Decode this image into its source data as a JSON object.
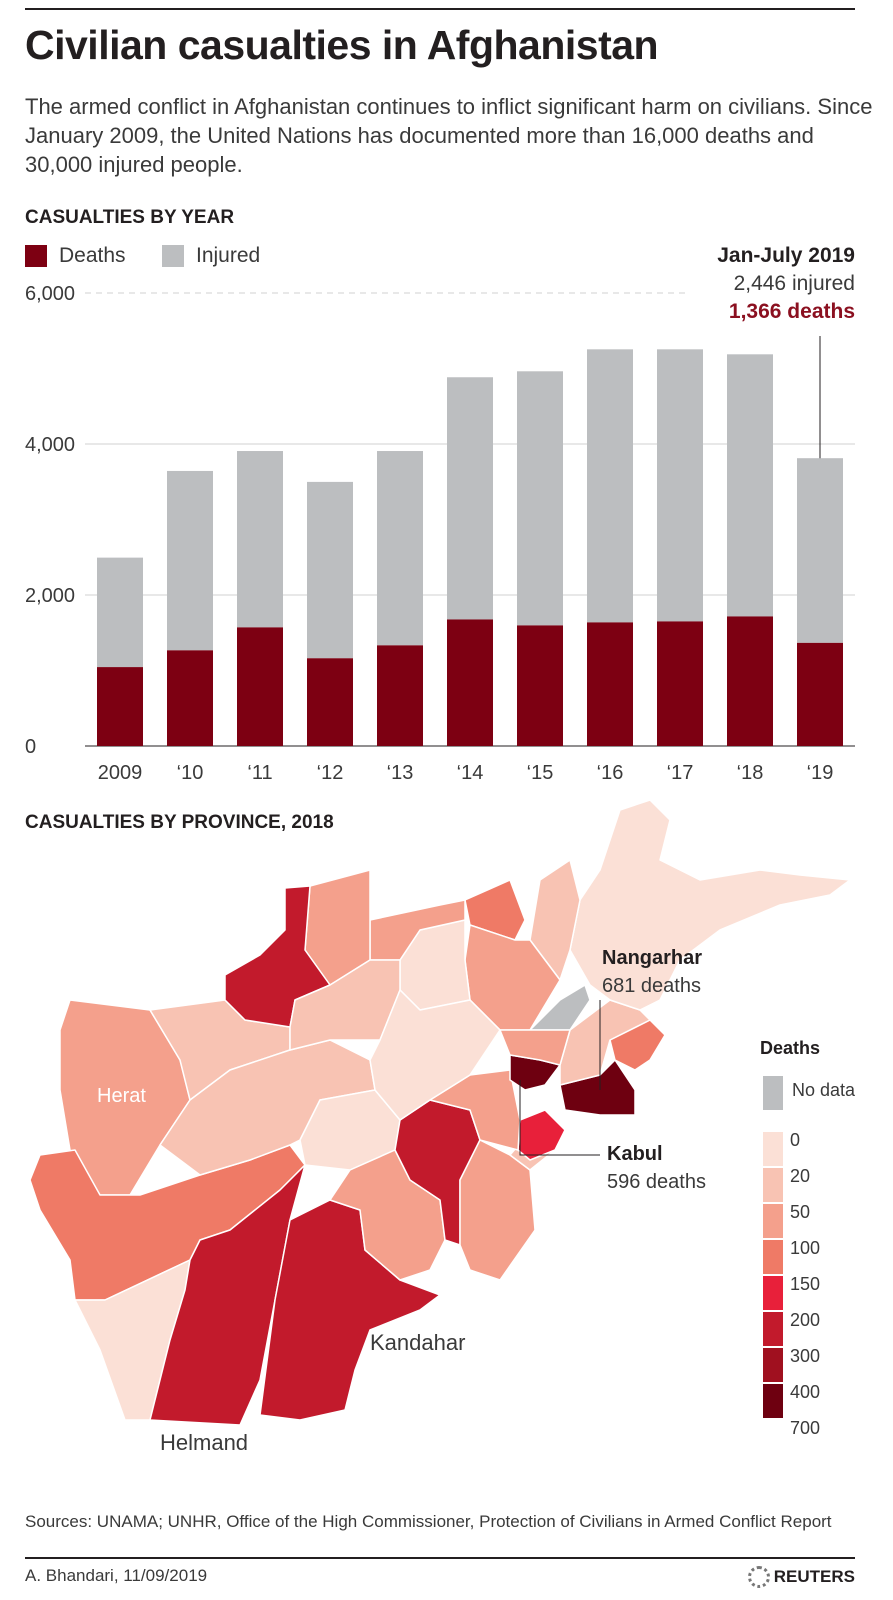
{
  "title": "Civilian casualties in Afghanistan",
  "subtitle": "The armed conflict in Afghanistan continues to inflict significant harm on civilians. Since January 2009, the United Nations has documented more than 16,000 deaths and 30,000 injured people.",
  "section_year": "CASUALTIES BY YEAR",
  "section_province": "CASUALTIES BY PROVINCE, 2018",
  "colors": {
    "deaths": "#7d0012",
    "injured": "#bcbec0",
    "accent": "#8b1020"
  },
  "chart_data": {
    "type": "bar",
    "stacked": true,
    "title": "CASUALTIES BY YEAR",
    "categories": [
      "2009",
      "‘10",
      "‘11",
      "‘12",
      "‘13",
      "‘14",
      "‘15",
      "‘16",
      "‘17",
      "‘18",
      "‘19"
    ],
    "series": [
      {
        "name": "Deaths",
        "values": [
          1045,
          1267,
          1571,
          1162,
          1333,
          1676,
          1597,
          1637,
          1650,
          1716,
          1366
        ]
      },
      {
        "name": "Injured",
        "values": [
          1450,
          2376,
          2336,
          2336,
          2574,
          3208,
          3366,
          3617,
          3604,
          3472,
          2446
        ]
      }
    ],
    "yticks": [
      "0",
      "2,000",
      "4,000",
      "6,000"
    ],
    "ylim": [
      0,
      6000
    ],
    "legend_position": "top-left",
    "grid": true,
    "annotation": {
      "title": "Jan-July 2019",
      "injured": "2,446 injured",
      "deaths": "1,366 deaths"
    }
  },
  "map": {
    "labels": {
      "herat": "Herat",
      "helmand": "Helmand",
      "kandahar": "Kandahar"
    },
    "nangarhar": {
      "name": "Nangarhar",
      "value": "681 deaths"
    },
    "kabul": {
      "name": "Kabul",
      "value": "596 deaths"
    },
    "legend": {
      "title": "Deaths",
      "no_data": "No data",
      "no_data_color": "#bcbec0",
      "bins": [
        {
          "label": "0",
          "color": "#fbe0d6"
        },
        {
          "label": "20",
          "color": "#f8c3b3"
        },
        {
          "label": "50",
          "color": "#f4a08c"
        },
        {
          "label": "100",
          "color": "#ef7a66"
        },
        {
          "label": "150",
          "color": "#e8203a"
        },
        {
          "label": "200",
          "color": "#c21a2c"
        },
        {
          "label": "300",
          "color": "#a0101f"
        },
        {
          "label": "400",
          "color": "#6e0010"
        }
      ],
      "max_label": "700"
    }
  },
  "sources": "Sources: UNAMA; UNHR, Office of the High Commissioner, Protection of Civilians in Armed Conflict Report",
  "byline": "A. Bhandari,  11/09/2019",
  "brand": "REUTERS"
}
